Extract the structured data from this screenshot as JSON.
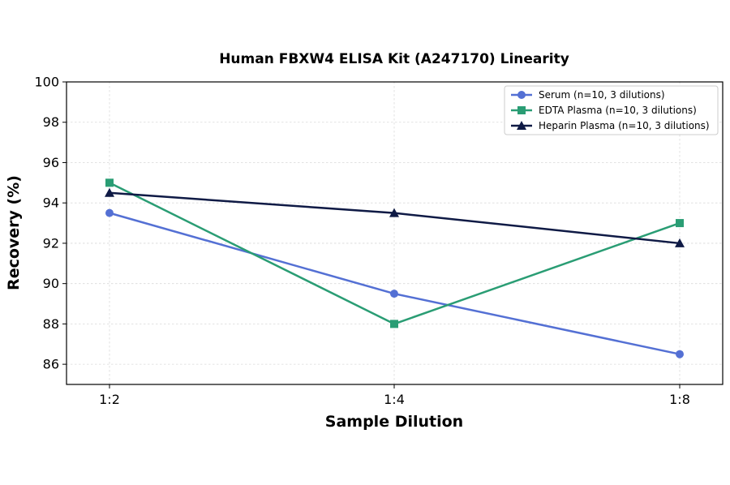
{
  "chart_data": {
    "type": "line",
    "title": "Human FBXW4 ELISA Kit (A247170) Linearity",
    "xlabel": "Sample Dilution",
    "ylabel": "Recovery (%)",
    "categories": [
      "1:2",
      "1:4",
      "1:8"
    ],
    "ylim": [
      85,
      100
    ],
    "yticks": [
      86,
      88,
      90,
      92,
      94,
      96,
      98,
      100
    ],
    "grid": true,
    "legend_position": "top-right",
    "series": [
      {
        "name": "Serum (n=10, 3 dilutions)",
        "values": [
          93.5,
          89.5,
          86.5
        ],
        "color": "#5470d4",
        "marker": "circle"
      },
      {
        "name": "EDTA Plasma (n=10, 3 dilutions)",
        "values": [
          95.0,
          88.0,
          93.0
        ],
        "color": "#2a9d74",
        "marker": "square"
      },
      {
        "name": "Heparin Plasma (n=10, 3 dilutions)",
        "values": [
          94.5,
          93.5,
          92.0
        ],
        "color": "#0f1a45",
        "marker": "triangle"
      }
    ]
  }
}
